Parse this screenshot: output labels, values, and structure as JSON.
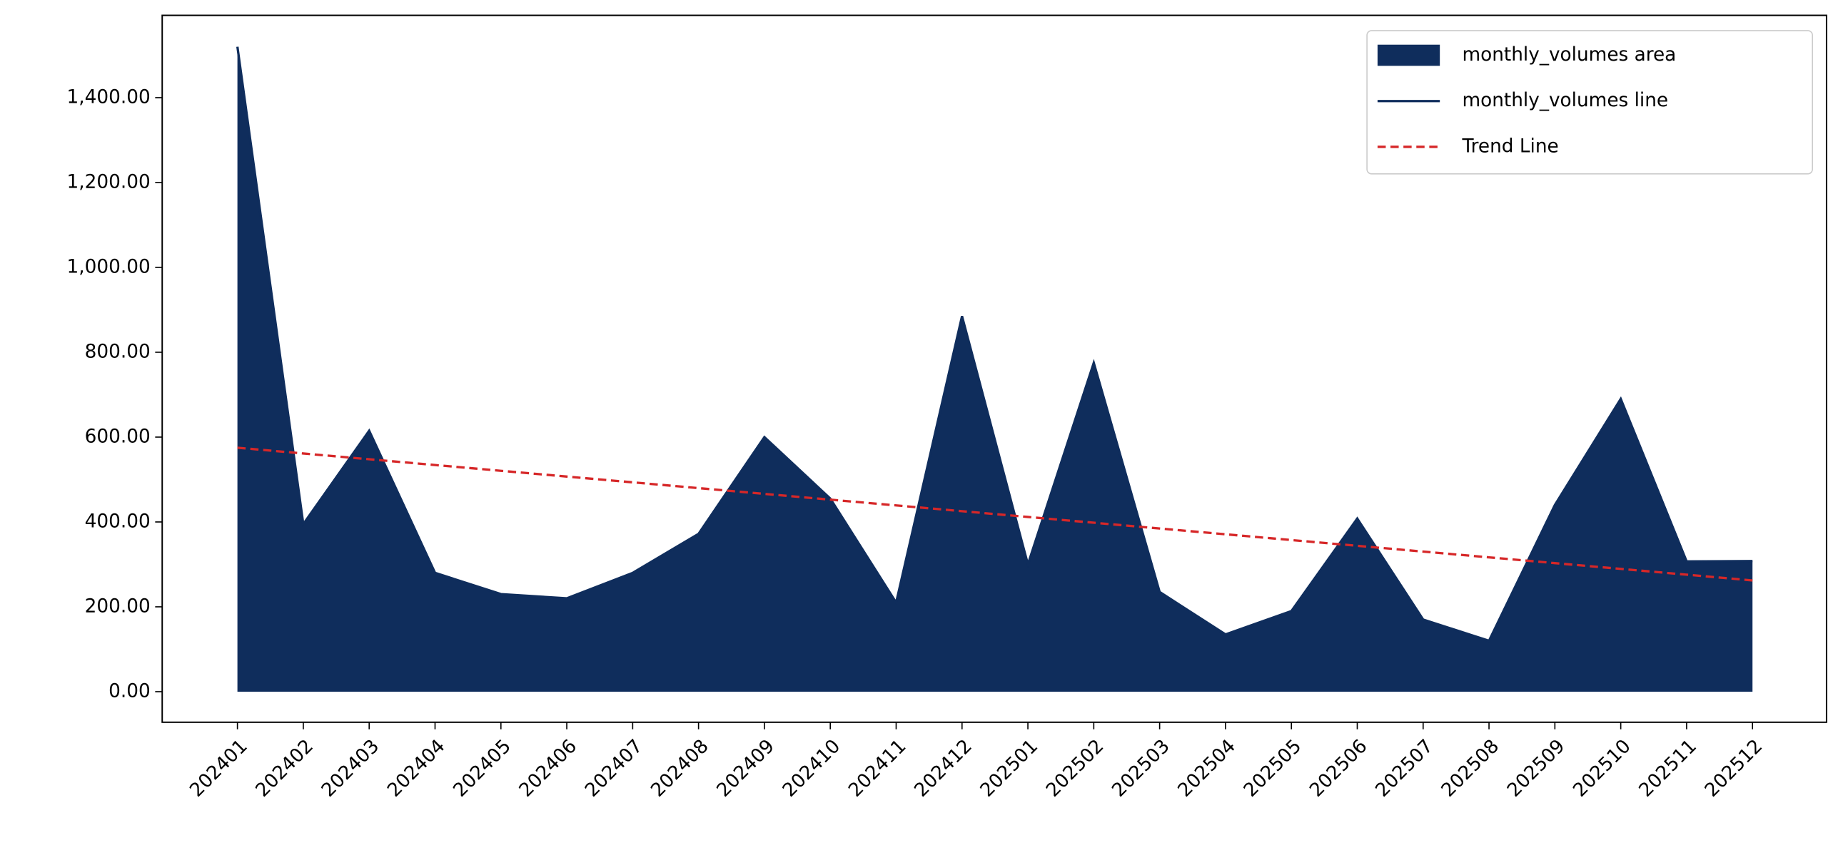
{
  "chart_data": {
    "type": "area",
    "categories": [
      "202401",
      "202402",
      "202403",
      "202404",
      "202405",
      "202406",
      "202407",
      "202408",
      "202409",
      "202410",
      "202411",
      "202412",
      "202501",
      "202502",
      "202503",
      "202504",
      "202505",
      "202506",
      "202507",
      "202508",
      "202509",
      "202510",
      "202511",
      "202512"
    ],
    "series": [
      {
        "name": "monthly_volumes area",
        "kind": "area",
        "color": "#0f2d5c",
        "values": [
          1520,
          395,
          615,
          280,
          230,
          220,
          280,
          372,
          600,
          455,
          210,
          885,
          300,
          775,
          235,
          135,
          190,
          408,
          170,
          120,
          440,
          690,
          307,
          308
        ]
      },
      {
        "name": "monthly_volumes line",
        "kind": "line",
        "color": "#0f2d5c",
        "values": [
          1520,
          395,
          615,
          280,
          230,
          220,
          280,
          372,
          600,
          455,
          210,
          885,
          300,
          775,
          235,
          135,
          190,
          408,
          170,
          120,
          440,
          690,
          307,
          308
        ]
      },
      {
        "name": "Trend Line",
        "kind": "dashed",
        "color": "#d62728",
        "values": [
          575,
          561.4,
          547.8,
          534.2,
          520.6,
          507,
          493.4,
          479.8,
          466.2,
          452.6,
          439,
          425.4,
          411.8,
          398.2,
          384.6,
          371,
          357.4,
          343.8,
          330.2,
          316.6,
          303,
          289.4,
          275.8,
          262.2
        ]
      }
    ],
    "ylim": [
      -72,
      1594
    ],
    "yticks": [
      {
        "value": 0,
        "label": "0.00"
      },
      {
        "value": 200,
        "label": "200.00"
      },
      {
        "value": 400,
        "label": "400.00"
      },
      {
        "value": 600,
        "label": "600.00"
      },
      {
        "value": 800,
        "label": "800.00"
      },
      {
        "value": 1000,
        "label": "1,000.00"
      },
      {
        "value": 1200,
        "label": "1,200.00"
      },
      {
        "value": 1400,
        "label": "1,400.00"
      }
    ],
    "grid": false,
    "legend": "upper right"
  }
}
